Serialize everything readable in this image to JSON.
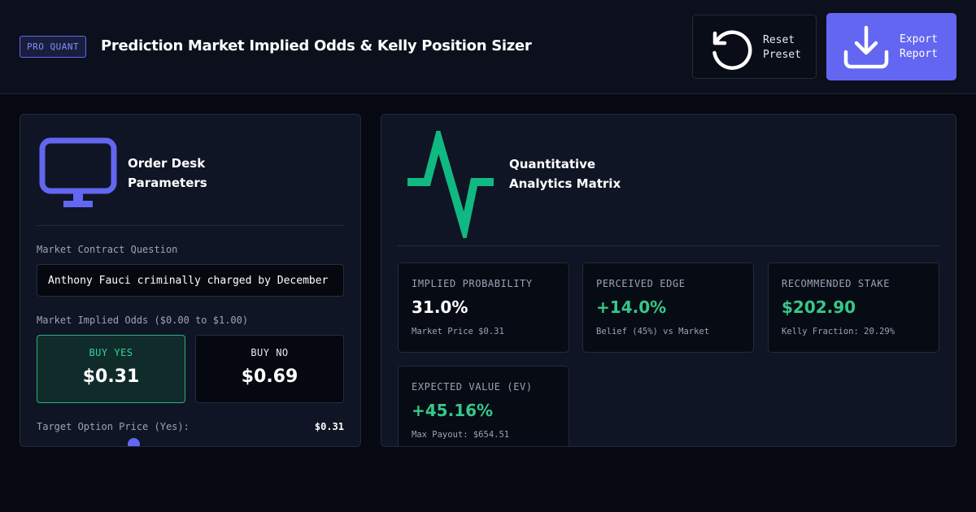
{
  "header": {
    "badge": "PRO QUANT",
    "title": "Prediction Market Implied Odds & Kelly Position Sizer",
    "reset_label": "Reset Preset",
    "export_label": "Export Report"
  },
  "order_desk": {
    "title": "Order Desk Parameters",
    "contract_label": "Market Contract Question",
    "contract_value": "Anthony Fauci criminally charged by December",
    "odds_label": "Market Implied Odds ($0.00 to $1.00)",
    "buy_yes_label": "BUY YES",
    "buy_yes_price": "$0.31",
    "buy_no_label": "BUY NO",
    "buy_no_price": "$0.69",
    "target_label": "Target Option Price (Yes):",
    "target_value": "$0.31",
    "target_price_fraction": 0.31
  },
  "analytics": {
    "title": "Quantitative Analytics Matrix",
    "metrics": [
      {
        "title": "IMPLIED PROBABILITY",
        "value": "31.0%",
        "sub": "Market Price $0.31"
      },
      {
        "title": "PERCEIVED EDGE",
        "value": "+14.0%",
        "sub": "Belief (45%) vs Market"
      },
      {
        "title": "RECOMMENDED STAKE",
        "value": "$202.90",
        "sub": "Kelly Fraction: 20.29%"
      },
      {
        "title": "EXPECTED VALUE (EV)",
        "value": "+45.16%",
        "sub": "Max Payout: $654.51"
      }
    ]
  },
  "colors": {
    "accent": "#6366f1",
    "positive": "#34c88a",
    "background": "#060911",
    "panel": "#0f1524"
  },
  "icons": {
    "reset": "rotate-ccw-icon",
    "export": "download-icon",
    "order_desk": "monitor-icon",
    "analytics": "pulse-icon"
  }
}
